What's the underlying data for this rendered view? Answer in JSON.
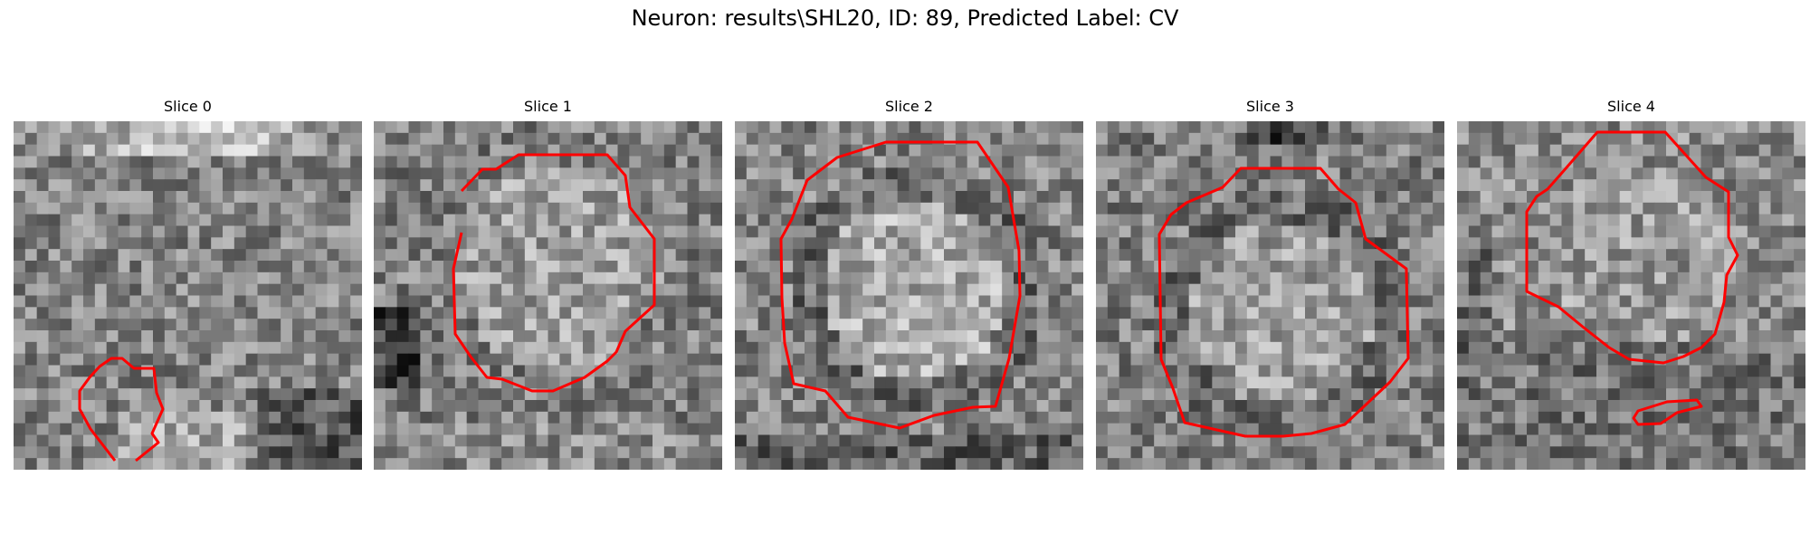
{
  "figure": {
    "title": "Neuron: results\\SHL20, ID: 89, Predicted Label: CV"
  },
  "contour_color": "#ff0000",
  "panels": [
    {
      "title": "Slice 0"
    },
    {
      "title": "Slice 1"
    },
    {
      "title": "Slice 2"
    },
    {
      "title": "Slice 3"
    },
    {
      "title": "Slice 4"
    }
  ]
}
